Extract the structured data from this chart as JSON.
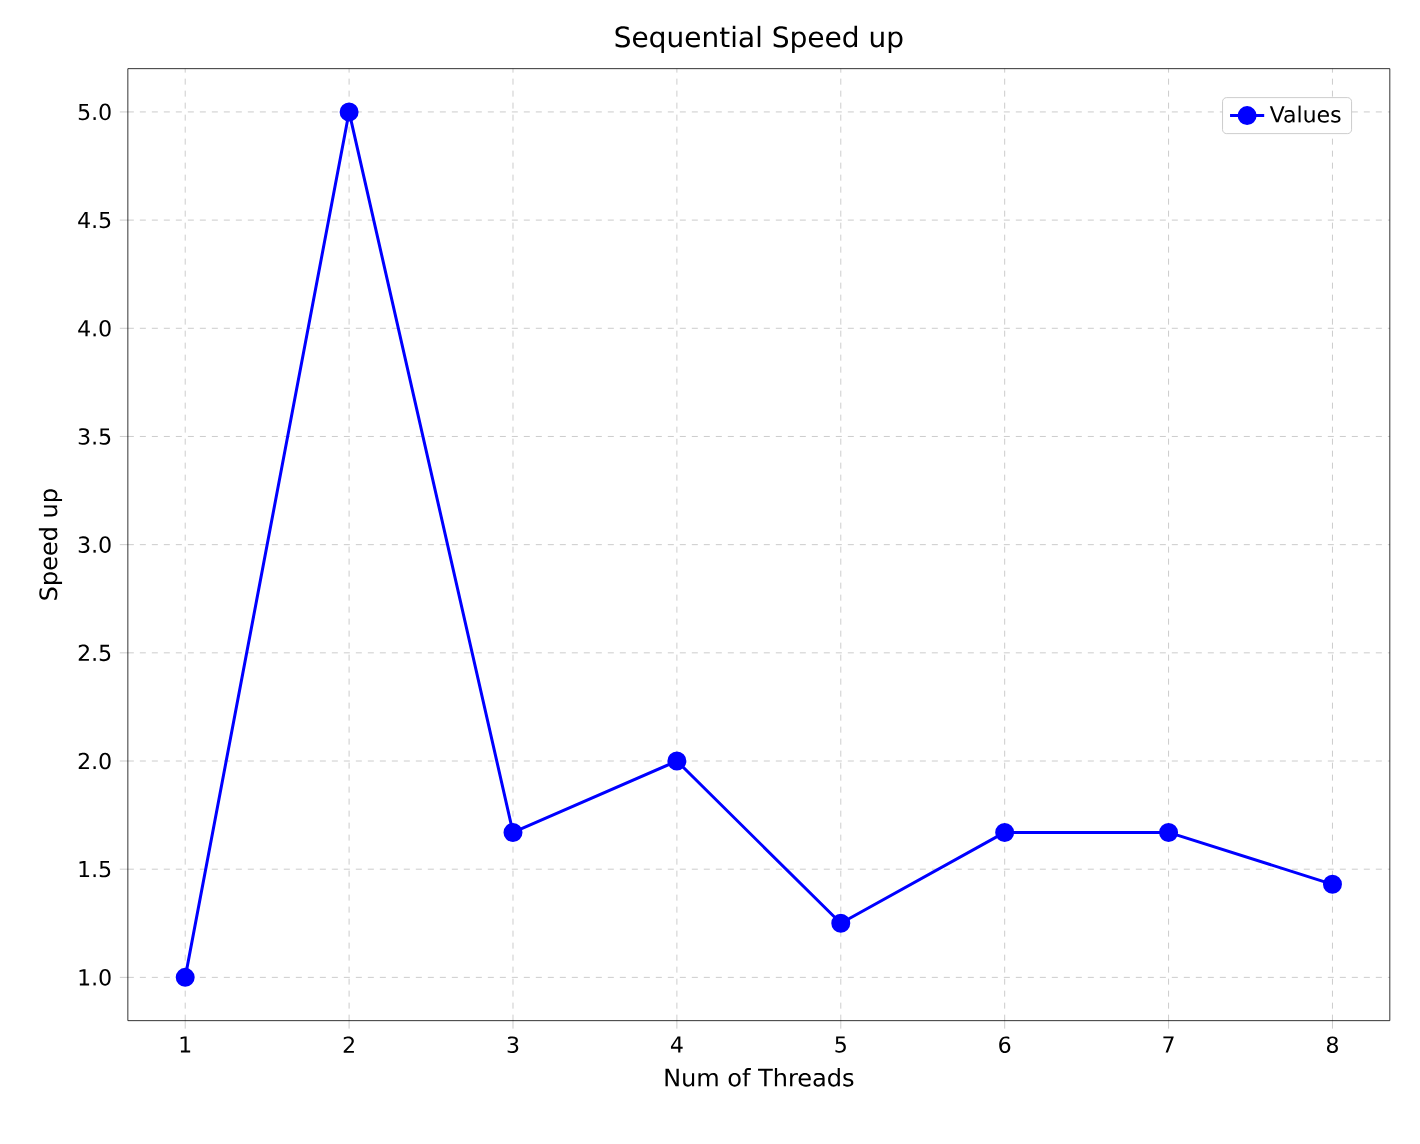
{
  "chart_data": {
    "type": "line",
    "title": "Sequential Speed up",
    "xlabel": "Num of Threads",
    "ylabel": "Speed up",
    "x": [
      1,
      2,
      3,
      4,
      5,
      6,
      7,
      8
    ],
    "series": [
      {
        "name": "Values",
        "color": "#0000ff",
        "values": [
          1.0,
          5.0,
          1.67,
          2.0,
          1.25,
          1.67,
          1.67,
          1.43
        ]
      }
    ],
    "xlim": [
      0.65,
      8.35
    ],
    "ylim": [
      0.8,
      5.2
    ],
    "xticks": [
      1,
      2,
      3,
      4,
      5,
      6,
      7,
      8
    ],
    "yticks": [
      {
        "value": 1,
        "label": "1.0"
      },
      {
        "value": 1.5,
        "label": "1.5"
      },
      {
        "value": 2,
        "label": "2.0"
      },
      {
        "value": 2.5,
        "label": "2.5"
      },
      {
        "value": 3,
        "label": "3.0"
      },
      {
        "value": 3.5,
        "label": "3.5"
      },
      {
        "value": 4,
        "label": "4.0"
      },
      {
        "value": 4.5,
        "label": "4.5"
      },
      {
        "value": 5,
        "label": "5.0"
      }
    ],
    "grid": true,
    "legend": "top right",
    "marker": "circle",
    "line_style": "solid"
  }
}
